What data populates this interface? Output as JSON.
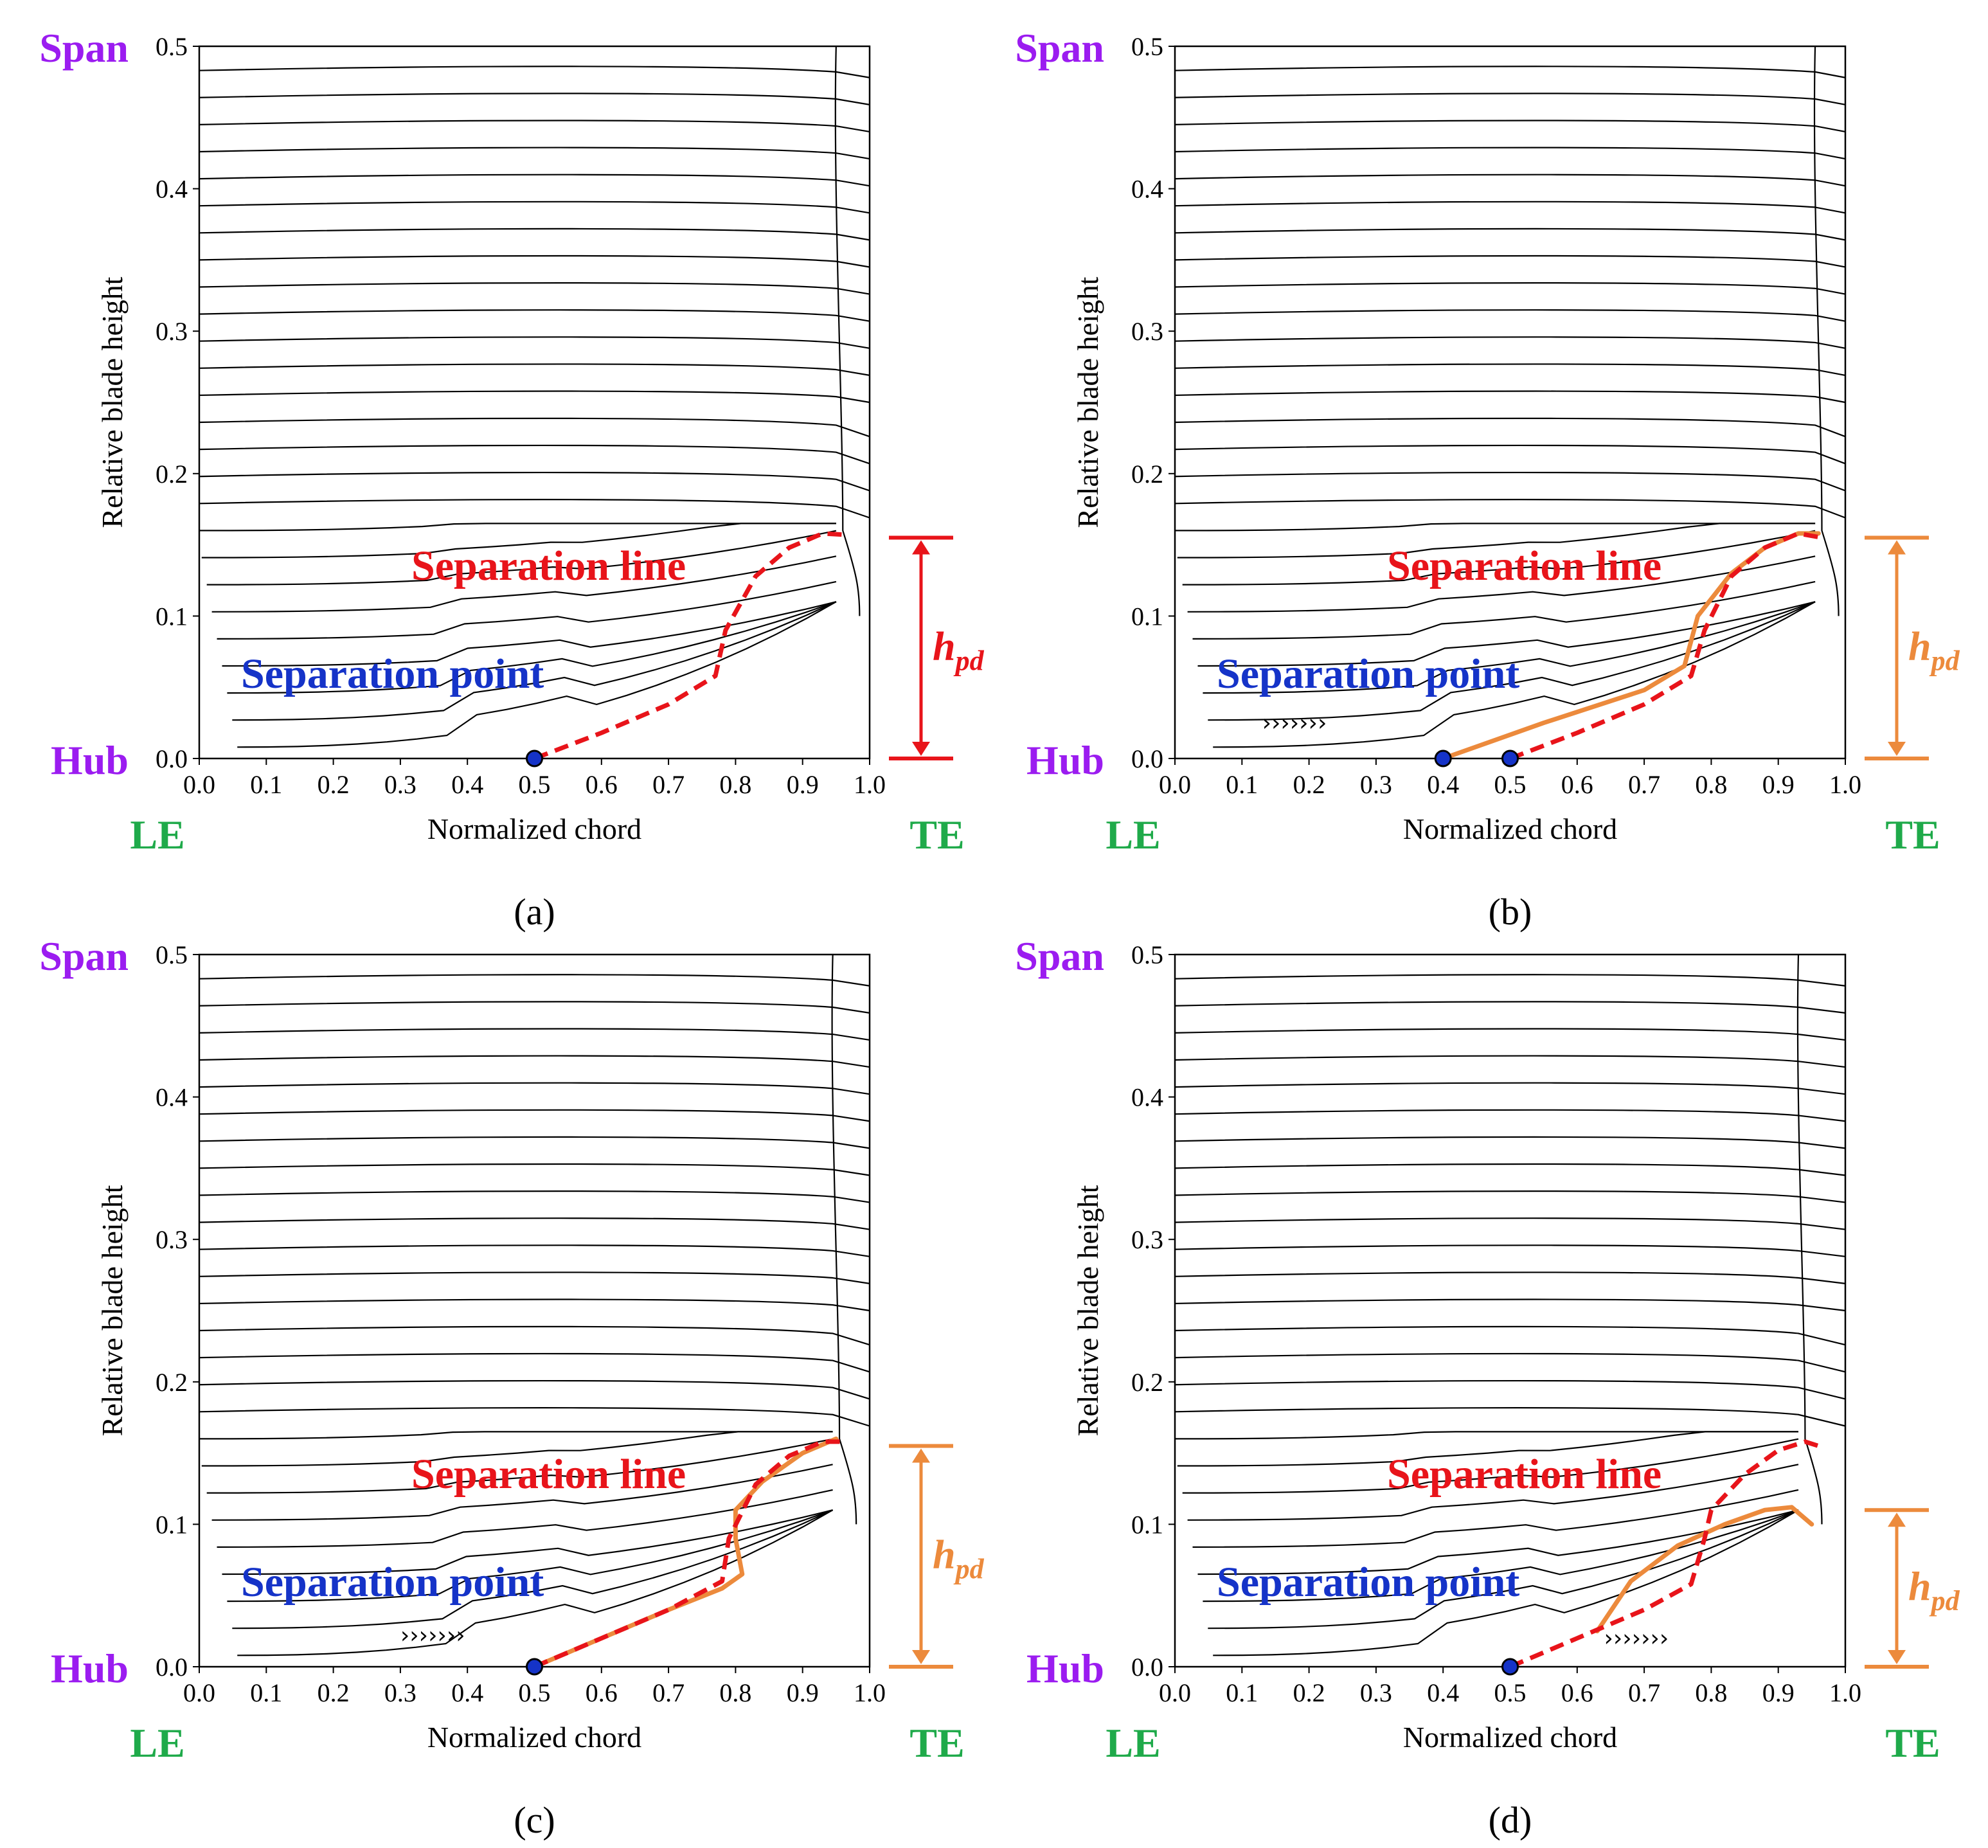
{
  "chart_data": [
    {
      "type": "line",
      "caption": "(a)",
      "xlabel": "Normalized chord",
      "ylabel": "Relative blade height",
      "xlim": [
        0.0,
        1.0
      ],
      "ylim": [
        0.0,
        0.5
      ],
      "xticks": [
        "0.0",
        "0.1",
        "0.2",
        "0.3",
        "0.4",
        "0.5",
        "0.6",
        "0.7",
        "0.8",
        "0.9",
        "1.0"
      ],
      "yticks": [
        "0.0",
        "0.1",
        "0.2",
        "0.3",
        "0.4",
        "0.5"
      ],
      "labels": {
        "span": "Span",
        "hub": "Hub",
        "le": "LE",
        "te": "TE"
      },
      "annotations": {
        "separation_line": "Separation line",
        "separation_point": "Separation point",
        "hpd": {
          "main": "h",
          "sub": "pd"
        }
      },
      "hpd_color": "#e8141a",
      "hpd_range": [
        0.0,
        0.155
      ],
      "separation_points_x": [
        0.5
      ],
      "separation_line": [
        [
          0.5,
          0.0
        ],
        [
          0.6,
          0.018
        ],
        [
          0.7,
          0.038
        ],
        [
          0.77,
          0.058
        ],
        [
          0.785,
          0.09
        ],
        [
          0.83,
          0.128
        ],
        [
          0.88,
          0.148
        ],
        [
          0.93,
          0.158
        ],
        [
          0.965,
          0.157
        ]
      ],
      "reattachment_line": [],
      "chevrons": null,
      "te_chord": 0.95
    },
    {
      "type": "line",
      "caption": "(b)",
      "xlabel": "Normalized chord",
      "ylabel": "Relative blade height",
      "xlim": [
        0.0,
        1.0
      ],
      "ylim": [
        0.0,
        0.5
      ],
      "xticks": [
        "0.0",
        "0.1",
        "0.2",
        "0.3",
        "0.4",
        "0.5",
        "0.6",
        "0.7",
        "0.8",
        "0.9",
        "1.0"
      ],
      "yticks": [
        "0.0",
        "0.1",
        "0.2",
        "0.3",
        "0.4",
        "0.5"
      ],
      "labels": {
        "span": "Span",
        "hub": "Hub",
        "le": "LE",
        "te": "TE"
      },
      "annotations": {
        "separation_line": "Separation line",
        "separation_point": "Separation point",
        "hpd": {
          "main": "h",
          "sub": "pd"
        }
      },
      "hpd_color": "#ec8a3c",
      "hpd_range": [
        0.0,
        0.155
      ],
      "separation_points_x": [
        0.4,
        0.5
      ],
      "separation_line": [
        [
          0.5,
          0.0
        ],
        [
          0.6,
          0.018
        ],
        [
          0.7,
          0.038
        ],
        [
          0.77,
          0.058
        ],
        [
          0.79,
          0.09
        ],
        [
          0.83,
          0.128
        ],
        [
          0.88,
          0.148
        ],
        [
          0.93,
          0.158
        ],
        [
          0.965,
          0.155
        ]
      ],
      "reattachment_line": [
        [
          0.4,
          0.0
        ],
        [
          0.55,
          0.025
        ],
        [
          0.7,
          0.048
        ],
        [
          0.76,
          0.065
        ],
        [
          0.78,
          0.1
        ],
        [
          0.83,
          0.13
        ],
        [
          0.88,
          0.148
        ],
        [
          0.93,
          0.158
        ],
        [
          0.96,
          0.158
        ]
      ],
      "chevrons": {
        "x": 0.13,
        "y": 0.025,
        "text": "›››››››"
      },
      "te_chord": 0.955
    },
    {
      "type": "line",
      "caption": "(c)",
      "xlabel": "Normalized chord",
      "ylabel": "Relative blade height",
      "xlim": [
        0.0,
        1.0
      ],
      "ylim": [
        0.0,
        0.5
      ],
      "xticks": [
        "0.0",
        "0.1",
        "0.2",
        "0.3",
        "0.4",
        "0.5",
        "0.6",
        "0.7",
        "0.8",
        "0.9",
        "1.0"
      ],
      "yticks": [
        "0.0",
        "0.1",
        "0.2",
        "0.3",
        "0.4",
        "0.5"
      ],
      "labels": {
        "span": "Span",
        "hub": "Hub",
        "le": "LE",
        "te": "TE"
      },
      "annotations": {
        "separation_line": "Separation line",
        "separation_point": "Separation point",
        "hpd": {
          "main": "h",
          "sub": "pd"
        }
      },
      "hpd_color": "#ec8a3c",
      "hpd_range": [
        0.0,
        0.155
      ],
      "separation_points_x": [
        0.5
      ],
      "separation_line": [
        [
          0.5,
          0.0
        ],
        [
          0.6,
          0.02
        ],
        [
          0.7,
          0.04
        ],
        [
          0.78,
          0.06
        ],
        [
          0.79,
          0.09
        ],
        [
          0.83,
          0.128
        ],
        [
          0.88,
          0.148
        ],
        [
          0.93,
          0.158
        ],
        [
          0.965,
          0.158
        ]
      ],
      "reattachment_line": [
        [
          0.5,
          0.0
        ],
        [
          0.6,
          0.02
        ],
        [
          0.7,
          0.04
        ],
        [
          0.78,
          0.055
        ],
        [
          0.81,
          0.065
        ],
        [
          0.8,
          0.09
        ],
        [
          0.8,
          0.11
        ],
        [
          0.84,
          0.13
        ],
        [
          0.9,
          0.15
        ],
        [
          0.95,
          0.16
        ]
      ],
      "chevrons": {
        "x": 0.3,
        "y": 0.022,
        "text": "›››››››"
      },
      "te_chord": 0.945
    },
    {
      "type": "line",
      "caption": "(d)",
      "xlabel": "Normalized chord",
      "ylabel": "Relative blade height",
      "xlim": [
        0.0,
        1.0
      ],
      "ylim": [
        0.0,
        0.5
      ],
      "xticks": [
        "0.0",
        "0.1",
        "0.2",
        "0.3",
        "0.4",
        "0.5",
        "0.6",
        "0.7",
        "0.8",
        "0.9",
        "1.0"
      ],
      "yticks": [
        "0.0",
        "0.1",
        "0.2",
        "0.3",
        "0.4",
        "0.5"
      ],
      "labels": {
        "span": "Span",
        "hub": "Hub",
        "le": "LE",
        "te": "TE"
      },
      "annotations": {
        "separation_line": "Separation line",
        "separation_point": "Separation point",
        "hpd": {
          "main": "h",
          "sub": "pd"
        }
      },
      "hpd_color": "#ec8a3c",
      "hpd_range": [
        0.0,
        0.11
      ],
      "separation_points_x": [
        0.5
      ],
      "separation_line": [
        [
          0.5,
          0.0
        ],
        [
          0.6,
          0.02
        ],
        [
          0.7,
          0.04
        ],
        [
          0.77,
          0.058
        ],
        [
          0.79,
          0.09
        ],
        [
          0.8,
          0.11
        ],
        [
          0.85,
          0.135
        ],
        [
          0.9,
          0.152
        ],
        [
          0.94,
          0.158
        ],
        [
          0.96,
          0.155
        ]
      ],
      "reattachment_line": [
        [
          0.63,
          0.025
        ],
        [
          0.68,
          0.06
        ],
        [
          0.75,
          0.085
        ],
        [
          0.82,
          0.1
        ],
        [
          0.88,
          0.11
        ],
        [
          0.92,
          0.112
        ],
        [
          0.95,
          0.1
        ]
      ],
      "chevrons": {
        "x": 0.64,
        "y": 0.02,
        "text": "›››››››"
      },
      "te_chord": 0.93
    }
  ]
}
